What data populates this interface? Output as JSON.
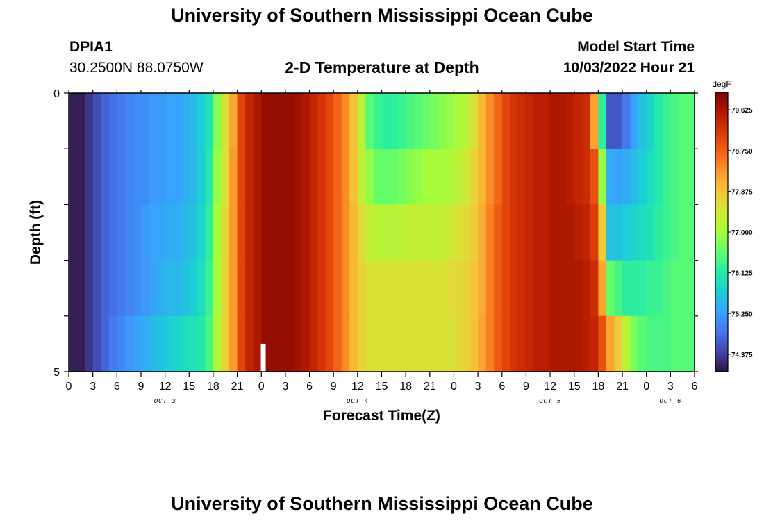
{
  "header": {
    "title": "University of Southern Mississippi Ocean Cube",
    "station_id": "DPIA1",
    "station_coords": "30.2500N  88.0750W",
    "plot_title": "2-D Temperature at Depth",
    "model_start_label": "Model Start Time",
    "model_start_value": "10/03/2022 Hour 21"
  },
  "footer": {
    "title": "University of Southern Mississippi Ocean Cube"
  },
  "colors": {
    "palette": [
      "#30123b",
      "#4145ab",
      "#4675ed",
      "#39a2fc",
      "#1bcfd4",
      "#24eca6",
      "#61fc6c",
      "#a4fc3b",
      "#d1e834",
      "#f3c63a",
      "#fe9b2d",
      "#f36315",
      "#d93806",
      "#b11901",
      "#7a0402"
    ],
    "marker": "#ffffff"
  },
  "chart_data": {
    "type": "heatmap",
    "xlabel": "Forecast Time(Z)",
    "ylabel": "Depth (ft)",
    "ylim": [
      0,
      5
    ],
    "y_ticks": [
      "0",
      "5"
    ],
    "x_range_hours": [
      0,
      78
    ],
    "x_tick_labels": [
      "0",
      "3",
      "6",
      "9",
      "12",
      "15",
      "18",
      "21",
      "0",
      "3",
      "6",
      "9",
      "12",
      "15",
      "18",
      "21",
      "0",
      "3",
      "6",
      "9",
      "12",
      "15",
      "18",
      "21",
      "0",
      "3",
      "6"
    ],
    "day_labels": [
      {
        "label": "OCT 3",
        "hour": 12
      },
      {
        "label": "OCT 4",
        "hour": 36
      },
      {
        "label": "OCT 5",
        "hour": 60
      },
      {
        "label": "OCT 6",
        "hour": 75
      }
    ],
    "colorbar": {
      "unit": "degF",
      "min": 74.0,
      "max": 80.0,
      "ticks": [
        "79.625",
        "78.750",
        "77.875",
        "77.000",
        "76.125",
        "75.250",
        "74.375"
      ]
    },
    "depth_bands_ft": [
      0.5,
      1.5,
      2.5,
      3.5,
      4.5
    ],
    "time_step_hours": 1,
    "temperature_degF": [
      [
        74.1,
        74.1,
        74.3,
        74.5,
        74.7,
        74.8,
        74.9,
        75.0,
        75.1,
        75.1,
        75.2,
        75.2,
        75.3,
        75.3,
        75.4,
        75.5,
        75.7,
        76.0,
        76.8,
        77.5,
        78.2,
        79.0,
        79.4,
        79.6,
        79.8,
        79.8,
        79.8,
        79.8,
        79.7,
        79.6,
        79.4,
        79.2,
        79.0,
        78.7,
        78.4,
        77.9,
        77.2,
        76.5,
        76.3,
        76.2,
        76.2,
        76.3,
        76.4,
        76.5,
        76.6,
        76.7,
        76.8,
        76.9,
        77.0,
        77.2,
        77.5,
        78.0,
        78.4,
        78.7,
        79.0,
        79.2,
        79.3,
        79.4,
        79.5,
        79.5,
        79.6,
        79.6,
        79.5,
        79.4,
        79.3,
        78.2,
        76.2,
        74.6,
        74.6,
        74.9,
        75.3,
        75.6,
        75.8,
        76.1,
        76.3,
        76.4,
        76.5,
        76.5
      ],
      [
        74.1,
        74.1,
        74.3,
        74.5,
        74.7,
        74.8,
        74.9,
        75.0,
        75.1,
        75.1,
        75.2,
        75.2,
        75.3,
        75.3,
        75.4,
        75.5,
        75.7,
        76.1,
        76.9,
        77.5,
        78.3,
        79.0,
        79.4,
        79.6,
        79.8,
        79.8,
        79.8,
        79.8,
        79.7,
        79.6,
        79.4,
        79.2,
        79.0,
        78.7,
        78.4,
        77.9,
        77.3,
        76.9,
        76.6,
        76.6,
        76.6,
        76.7,
        76.8,
        76.9,
        77.0,
        77.0,
        77.0,
        77.1,
        77.2,
        77.4,
        77.7,
        78.0,
        78.4,
        78.7,
        79.0,
        79.2,
        79.3,
        79.4,
        79.5,
        79.5,
        79.6,
        79.6,
        79.5,
        79.4,
        79.3,
        78.9,
        76.9,
        75.4,
        75.3,
        75.4,
        75.5,
        75.7,
        75.9,
        76.1,
        76.3,
        76.4,
        76.5,
        76.5
      ],
      [
        74.1,
        74.1,
        74.3,
        74.5,
        74.7,
        74.8,
        74.9,
        75.0,
        75.1,
        75.2,
        75.3,
        75.3,
        75.4,
        75.4,
        75.5,
        75.6,
        75.8,
        76.2,
        77.0,
        77.6,
        78.3,
        79.0,
        79.4,
        79.6,
        79.8,
        79.8,
        79.8,
        79.8,
        79.7,
        79.6,
        79.4,
        79.2,
        79.0,
        78.7,
        78.4,
        78.0,
        77.6,
        77.3,
        77.2,
        77.2,
        77.2,
        77.2,
        77.3,
        77.3,
        77.3,
        77.3,
        77.3,
        77.4,
        77.5,
        77.6,
        77.8,
        78.1,
        78.5,
        78.8,
        79.0,
        79.2,
        79.3,
        79.4,
        79.5,
        79.5,
        79.6,
        79.6,
        79.6,
        79.5,
        79.4,
        79.1,
        77.8,
        75.6,
        75.6,
        75.7,
        75.8,
        75.9,
        76.0,
        76.2,
        76.3,
        76.4,
        76.5,
        76.5
      ],
      [
        74.1,
        74.1,
        74.3,
        74.5,
        74.7,
        74.8,
        74.9,
        75.0,
        75.1,
        75.2,
        75.3,
        75.4,
        75.5,
        75.5,
        75.6,
        75.7,
        75.9,
        76.3,
        77.0,
        77.7,
        78.3,
        79.0,
        79.4,
        79.6,
        79.8,
        79.8,
        79.8,
        79.8,
        79.7,
        79.6,
        79.4,
        79.2,
        79.0,
        78.7,
        78.4,
        78.0,
        77.7,
        77.5,
        77.5,
        77.5,
        77.5,
        77.5,
        77.5,
        77.5,
        77.5,
        77.5,
        77.5,
        77.6,
        77.6,
        77.7,
        77.9,
        78.1,
        78.5,
        78.8,
        79.0,
        79.2,
        79.3,
        79.4,
        79.5,
        79.5,
        79.6,
        79.6,
        79.6,
        79.6,
        79.5,
        79.3,
        78.2,
        76.6,
        76.4,
        76.2,
        76.2,
        76.2,
        76.3,
        76.3,
        76.4,
        76.5,
        76.5,
        76.5
      ],
      [
        74.1,
        74.1,
        74.3,
        74.5,
        74.7,
        74.9,
        75.0,
        75.2,
        75.3,
        75.4,
        75.5,
        75.6,
        75.7,
        75.8,
        75.9,
        76.0,
        76.1,
        76.4,
        77.1,
        77.7,
        78.3,
        79.0,
        79.4,
        79.6,
        79.8,
        79.8,
        79.8,
        79.8,
        79.7,
        79.6,
        79.4,
        79.2,
        79.0,
        78.7,
        78.4,
        78.0,
        77.7,
        77.5,
        77.5,
        77.5,
        77.5,
        77.5,
        77.5,
        77.5,
        77.5,
        77.5,
        77.5,
        77.5,
        77.6,
        77.7,
        77.9,
        78.2,
        78.5,
        78.8,
        79.0,
        79.2,
        79.3,
        79.4,
        79.5,
        79.5,
        79.6,
        79.6,
        79.6,
        79.6,
        79.5,
        79.4,
        78.9,
        78.2,
        77.8,
        77.2,
        76.7,
        76.5,
        76.4,
        76.4,
        76.4,
        76.5,
        76.5,
        76.5
      ]
    ],
    "observation_marker": {
      "hour": 24.2,
      "depth_from_ft": 4.5,
      "depth_to_ft": 5
    }
  }
}
